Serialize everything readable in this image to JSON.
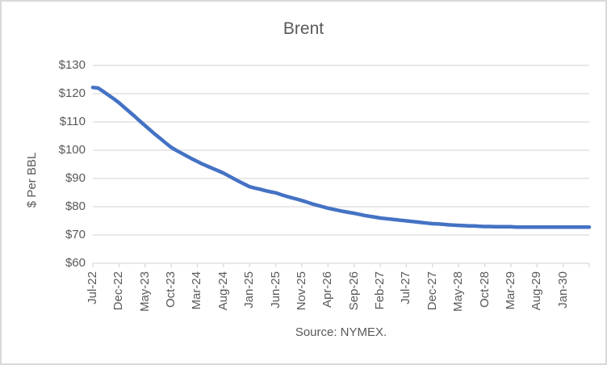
{
  "title": "Brent",
  "y_axis_title": "$ Per BBL",
  "source_note": "Source: NYMEX.",
  "colors": {
    "line": "#4472C4",
    "gridline": "#D9D9D9",
    "axis_line": "#D9D9D9",
    "border": "#D9D9D9",
    "text": "#595959",
    "background": "#FFFFFF"
  },
  "chart_data": {
    "type": "line",
    "title": "Brent",
    "xlabel": "",
    "ylabel": "$ Per BBL",
    "series_name": "Brent",
    "ylim": [
      60,
      130
    ],
    "y_tick_interval": 10,
    "y_tick_labels": [
      "$130",
      "$120",
      "$110",
      "$100",
      "$90",
      "$80",
      "$70",
      "$60"
    ],
    "x_tick_labels": [
      "Jul-22",
      "Dec-22",
      "May-23",
      "Oct-23",
      "Mar-24",
      "Aug-24",
      "Jan-25",
      "Jun-25",
      "Nov-25",
      "Apr-26",
      "Sep-26",
      "Feb-27",
      "Jul-27",
      "Dec-27",
      "May-28",
      "Oct-28",
      "Mar-29",
      "Aug-29",
      "Jan-30"
    ],
    "x_tick_interval_months": 5,
    "grid": "horizontal",
    "legend": "none",
    "x": [
      "Jul-22",
      "Aug-22",
      "Sep-22",
      "Oct-22",
      "Nov-22",
      "Dec-22",
      "Jan-23",
      "Feb-23",
      "Mar-23",
      "Apr-23",
      "May-23",
      "Jun-23",
      "Jul-23",
      "Aug-23",
      "Sep-23",
      "Oct-23",
      "Nov-23",
      "Dec-23",
      "Jan-24",
      "Feb-24",
      "Mar-24",
      "Apr-24",
      "May-24",
      "Jun-24",
      "Jul-24",
      "Aug-24",
      "Sep-24",
      "Oct-24",
      "Nov-24",
      "Dec-24",
      "Jan-25",
      "Feb-25",
      "Mar-25",
      "Apr-25",
      "May-25",
      "Jun-25",
      "Jul-25",
      "Aug-25",
      "Sep-25",
      "Oct-25",
      "Nov-25",
      "Dec-25",
      "Jan-26",
      "Feb-26",
      "Mar-26",
      "Apr-26",
      "May-26",
      "Jun-26",
      "Jul-26",
      "Aug-26",
      "Sep-26",
      "Oct-26",
      "Nov-26",
      "Dec-26",
      "Jan-27",
      "Feb-27",
      "Mar-27",
      "Apr-27",
      "May-27",
      "Jun-27",
      "Jul-27",
      "Aug-27",
      "Sep-27",
      "Oct-27",
      "Nov-27",
      "Dec-27",
      "Jan-28",
      "Feb-28",
      "Mar-28",
      "Apr-28",
      "May-28",
      "Jun-28",
      "Jul-28",
      "Aug-28",
      "Sep-28",
      "Oct-28",
      "Nov-28",
      "Dec-28",
      "Jan-29",
      "Feb-29",
      "Mar-29",
      "Apr-29",
      "May-29",
      "Jun-29",
      "Jul-29",
      "Aug-29",
      "Sep-29",
      "Oct-29",
      "Nov-29",
      "Dec-29",
      "Jan-30",
      "Feb-30",
      "Mar-30",
      "Apr-30",
      "May-30",
      "Jun-30"
    ],
    "values": [
      122.2,
      122.0,
      120.8,
      119.5,
      118.2,
      116.8,
      115.2,
      113.6,
      112.0,
      110.3,
      108.7,
      107.1,
      105.5,
      104.0,
      102.5,
      101.0,
      99.9,
      98.9,
      97.9,
      96.9,
      96.0,
      95.1,
      94.3,
      93.5,
      92.7,
      91.9,
      90.9,
      89.9,
      88.9,
      88.0,
      87.1,
      86.6,
      86.2,
      85.7,
      85.3,
      84.9,
      84.3,
      83.7,
      83.2,
      82.7,
      82.2,
      81.6,
      81.0,
      80.5,
      80.0,
      79.5,
      79.1,
      78.7,
      78.3,
      78.0,
      77.7,
      77.3,
      76.9,
      76.6,
      76.3,
      76.0,
      75.8,
      75.6,
      75.4,
      75.2,
      75.0,
      74.8,
      74.6,
      74.4,
      74.2,
      74.0,
      73.9,
      73.8,
      73.6,
      73.5,
      73.4,
      73.3,
      73.2,
      73.2,
      73.1,
      73.0,
      73.0,
      72.9,
      72.9,
      72.9,
      72.9,
      72.8,
      72.8,
      72.8,
      72.8,
      72.8,
      72.8,
      72.8,
      72.8,
      72.8,
      72.8,
      72.8,
      72.8,
      72.8,
      72.8,
      72.8
    ]
  }
}
